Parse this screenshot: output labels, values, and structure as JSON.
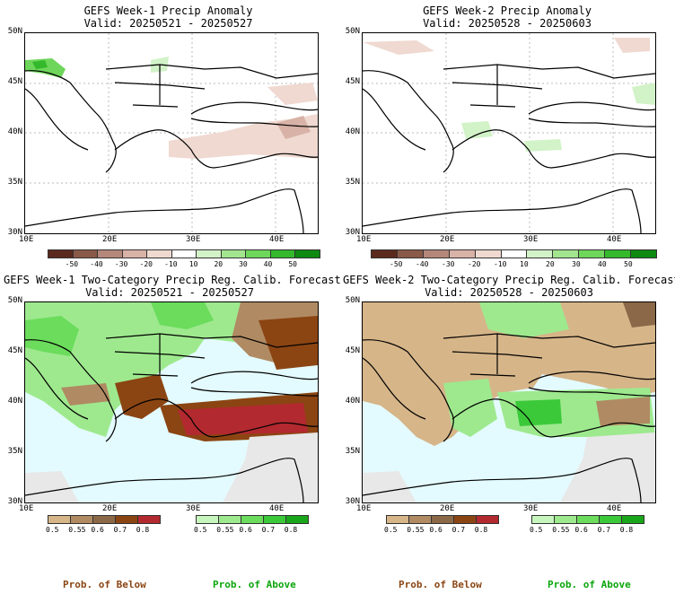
{
  "panels": [
    {
      "title": "GEFS Week-1 Precip Anomaly",
      "valid": "Valid: 20250521 - 20250527"
    },
    {
      "title": "GEFS Week-2 Precip Anomaly",
      "valid": "Valid: 20250528 - 20250603"
    },
    {
      "title": "GEFS Week-1 Two-Category Precip Reg. Calib. Forecast",
      "valid": "Valid: 20250521 - 20250527"
    },
    {
      "title": "GEFS Week-2 Two-Category Precip Reg. Calib. Forecast",
      "valid": "Valid: 20250528 - 20250603"
    }
  ],
  "lat_labels": [
    "50N",
    "45N",
    "40N",
    "35N",
    "30N"
  ],
  "lon_labels": [
    "10E",
    "20E",
    "30E",
    "40E"
  ],
  "anomaly_colorbar": {
    "labels": [
      "-50",
      "-40",
      "-30",
      "-20",
      "-10",
      "10",
      "20",
      "30",
      "40",
      "50"
    ],
    "colors": [
      "#5b2a1e",
      "#8a5a48",
      "#b4877a",
      "#d8b2a6",
      "#efd9d0",
      "#ffffff",
      "#d2f2c8",
      "#a3e58f",
      "#6ed65a",
      "#34b82c",
      "#0e8a12"
    ]
  },
  "below_colorbar": {
    "labels": [
      "0.5",
      "0.55",
      "0.6",
      "0.7",
      "0.8"
    ],
    "colors": [
      "#d6b589",
      "#b08a63",
      "#8b6847",
      "#8b4513",
      "#b2292f"
    ]
  },
  "above_colorbar": {
    "labels": [
      "0.5",
      "0.55",
      "0.6",
      "0.7",
      "0.8"
    ],
    "colors": [
      "#c7f5be",
      "#9ee98e",
      "#6bdc5c",
      "#3bc93a",
      "#1aa61a"
    ]
  },
  "footer": {
    "below": "Prob. of Below",
    "above": "Prob. of Above"
  },
  "colors": {
    "below_text": "#8b4513",
    "above_text": "#0aa60a",
    "sea": "#e3fbff",
    "land_gray": "#e8e8e8"
  }
}
